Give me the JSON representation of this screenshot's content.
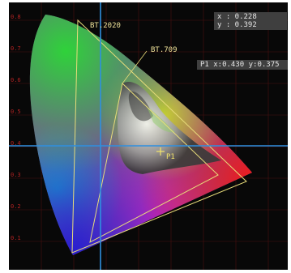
{
  "cursor_readout": {
    "x": "x : 0.228",
    "y": "y : 0.392"
  },
  "p1_readout": "P1 x:0.430 y:0.375",
  "gamut_labels": {
    "bt2020": "BT.2020",
    "bt709": "BT.709"
  },
  "marker_label": "P1",
  "y_axis_ticks": [
    "0.8",
    "0.7",
    "0.6",
    "0.5",
    "0.4",
    "0.3",
    "0.2",
    "0.1"
  ],
  "colors": {
    "background": "#080808",
    "cursor_line": "#2f8fe0",
    "gamut_line": "#e8dc7a",
    "grid": "#4a1010",
    "readout_bg": "#3f3f3f"
  }
}
